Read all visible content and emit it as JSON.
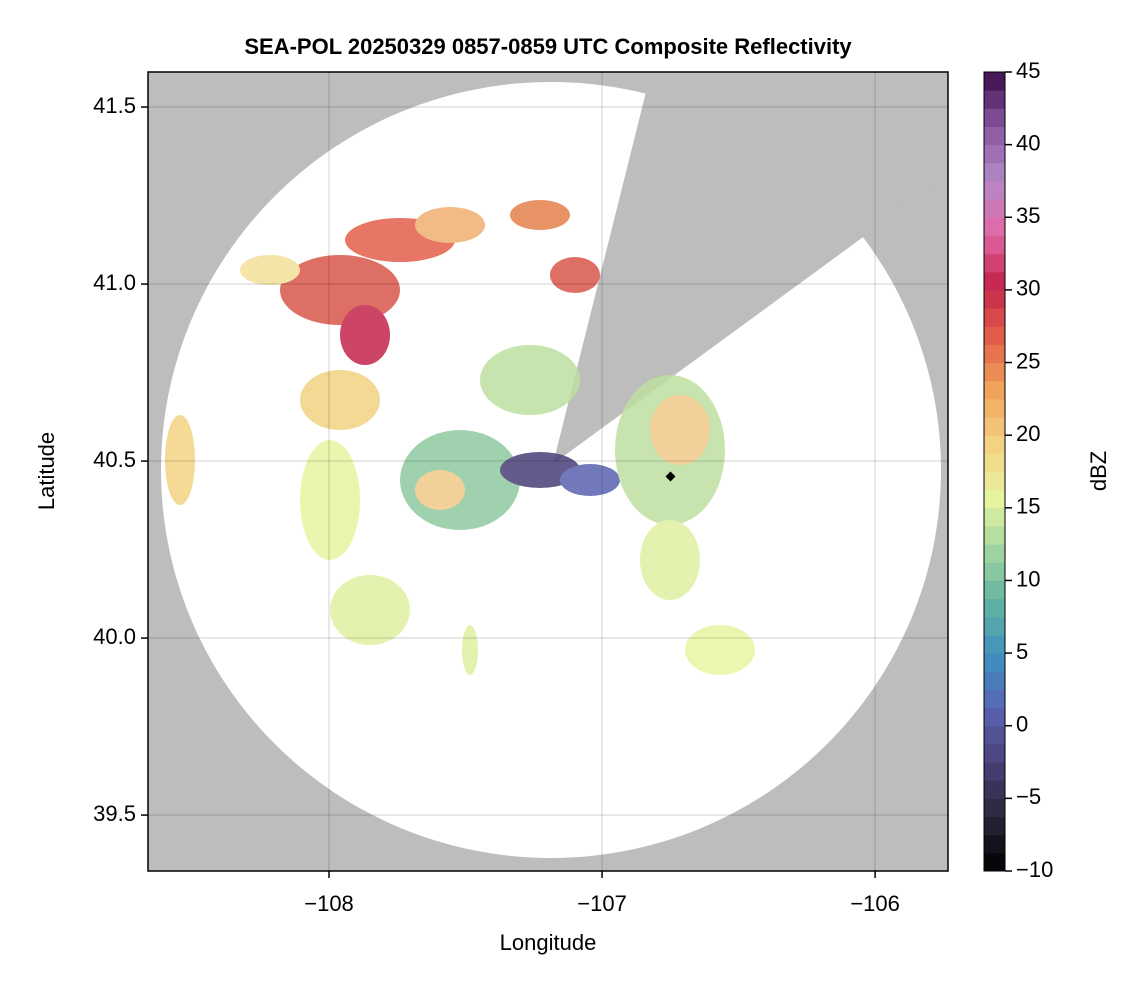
{
  "chart_data": {
    "type": "map",
    "title": "SEA-POL 20250329 0857-0859 UTC Composite Reflectivity",
    "x_label": "Longitude",
    "y_label": "Latitude",
    "xlim": [
      -108.663,
      -105.733
    ],
    "ylim": [
      39.342,
      41.599
    ],
    "xticks": [
      {
        "value": -108,
        "label": "−108"
      },
      {
        "value": -107,
        "label": "−107"
      },
      {
        "value": -106,
        "label": "−106"
      }
    ],
    "yticks": [
      39.5,
      {
        "value": 40.0,
        "label": "40.0"
      },
      40.5,
      {
        "value": 41.0,
        "label": "41.0"
      },
      41.5
    ],
    "grid": true,
    "colorbar": {
      "label": "dBZ",
      "lim": [
        -10,
        45
      ],
      "ticks": [
        {
          "value": -10,
          "label": "−10"
        },
        {
          "value": -5,
          "label": "−5"
        },
        0,
        5,
        10,
        15,
        20,
        25,
        30,
        35,
        40,
        45
      ],
      "colors": [
        "#000000",
        "#2a2438",
        "#4a3f78",
        "#5a62b0",
        "#3f8fc0",
        "#5fb3a2",
        "#9fd49f",
        "#e7f4a0",
        "#f3d382",
        "#f0a55c",
        "#e3604a",
        "#c4254d",
        "#e269a8",
        "#b18ac6",
        "#8a55a0",
        "#3b0b4a"
      ]
    }
  }
}
